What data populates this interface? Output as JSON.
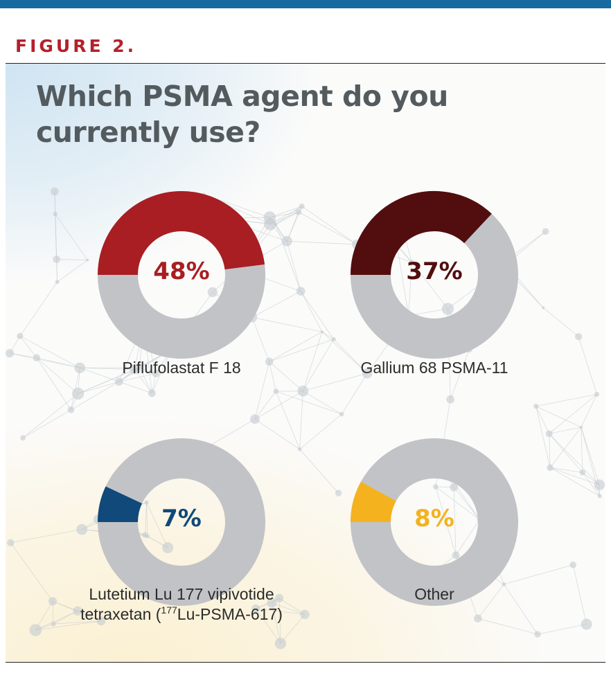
{
  "figure_label": "FIGURE 2.",
  "colors": {
    "accent_blue": "#166aa0",
    "figure_red": "#b5202a",
    "track_gray": "#c2c3c7",
    "title_gray": "#545b5f"
  },
  "chart_data": [
    {
      "type": "pie",
      "title": "Which PSMA agent do you currently use?",
      "category": "Piflufolastat F 18",
      "value_percent": 48,
      "value_label": "48%",
      "color": "#a81e22"
    },
    {
      "type": "pie",
      "title": "Which PSMA agent do you currently use?",
      "category": "Gallium 68 PSMA-11",
      "value_percent": 37,
      "value_label": "37%",
      "color": "#520e0e"
    },
    {
      "type": "pie",
      "title": "Which PSMA agent do you currently use?",
      "category": "Lutetium Lu 177 vipivotide tetraxetan (177Lu-PSMA-617)",
      "category_line1": "Lutetium Lu 177 vipivotide",
      "category_line2_prefix": "tetraxetan (",
      "category_line2_sup": "177",
      "category_line2_suffix": "Lu-PSMA-617)",
      "value_percent": 7,
      "value_label": "7%",
      "color": "#10497a"
    },
    {
      "type": "pie",
      "title": "Which PSMA agent do you currently use?",
      "category": "Other",
      "value_percent": 8,
      "value_label": "8%",
      "color": "#f5b21f"
    }
  ]
}
